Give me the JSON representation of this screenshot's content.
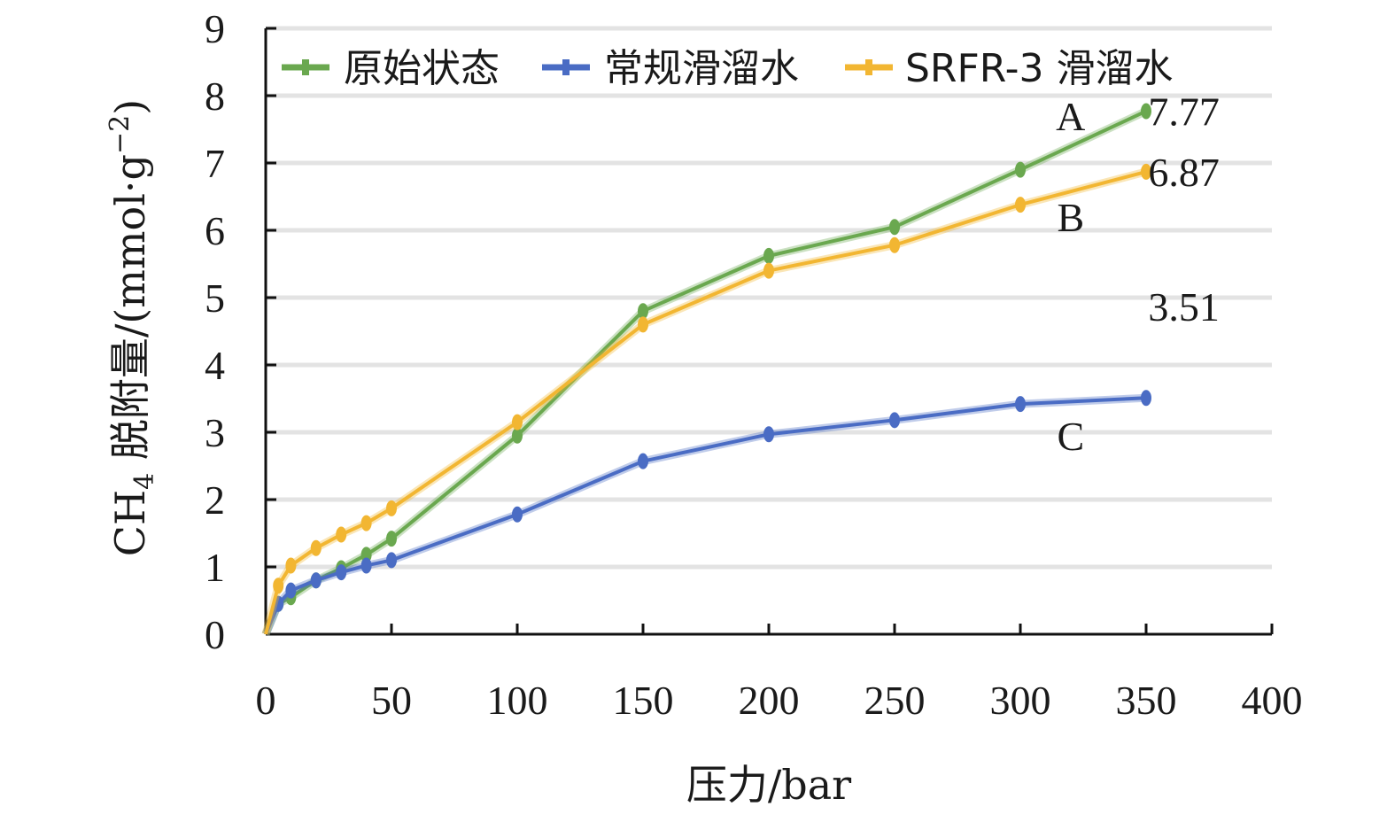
{
  "chart_data": {
    "type": "line",
    "xlabel": "压力/bar",
    "ylabel_main": "CH",
    "ylabel_sub": "4",
    "ylabel_rest": " 脱附量/(mmol·g",
    "ylabel_sup": "−2",
    "ylabel_end": ")",
    "xlim": [
      0,
      400
    ],
    "ylim": [
      0,
      9
    ],
    "x_ticks": [
      0,
      50,
      100,
      150,
      200,
      250,
      300,
      350,
      400
    ],
    "y_ticks": [
      0,
      1,
      2,
      3,
      4,
      5,
      6,
      7,
      8,
      9
    ],
    "x_tick_labels": [
      "0",
      "50",
      "100",
      "150",
      "200",
      "250",
      "300",
      "350",
      "400"
    ],
    "y_tick_labels": [
      "0",
      "1",
      "2",
      "3",
      "4",
      "5",
      "6",
      "7",
      "8",
      "9"
    ],
    "grid": "horizontal",
    "legend_position": "top-left",
    "series": [
      {
        "name": "原始状态",
        "color": "#6aa84f",
        "x": [
          0,
          5,
          10,
          20,
          30,
          40,
          50,
          100,
          150,
          200,
          250,
          300,
          350
        ],
        "y": [
          0,
          0.45,
          0.55,
          0.8,
          0.98,
          1.18,
          1.42,
          2.95,
          4.8,
          5.62,
          6.05,
          6.9,
          7.77
        ]
      },
      {
        "name": "常规滑溜水",
        "color": "#4a6cc4",
        "x": [
          0,
          5,
          10,
          20,
          30,
          40,
          50,
          100,
          150,
          200,
          250,
          300,
          350
        ],
        "y": [
          0,
          0.45,
          0.65,
          0.8,
          0.92,
          1.02,
          1.1,
          1.78,
          2.57,
          2.97,
          3.18,
          3.42,
          3.51
        ]
      },
      {
        "name": "SRFR-3 滑溜水",
        "color": "#f2b632",
        "x": [
          0,
          5,
          10,
          20,
          30,
          40,
          50,
          100,
          150,
          200,
          250,
          300,
          350
        ],
        "y": [
          0,
          0.72,
          1.02,
          1.28,
          1.48,
          1.65,
          1.87,
          3.15,
          4.6,
          5.4,
          5.78,
          6.38,
          6.87
        ]
      }
    ],
    "annotations": [
      {
        "text": "A",
        "x": 320,
        "y": 7.7
      },
      {
        "text": "B",
        "x": 320,
        "y": 6.2
      },
      {
        "text": "C",
        "x": 320,
        "y": 2.95
      },
      {
        "text": "7.77",
        "x": 365,
        "y": 7.77
      },
      {
        "text": "6.87",
        "x": 365,
        "y": 6.87
      },
      {
        "text": "3.51",
        "x": 365,
        "y": 4.87
      }
    ]
  }
}
